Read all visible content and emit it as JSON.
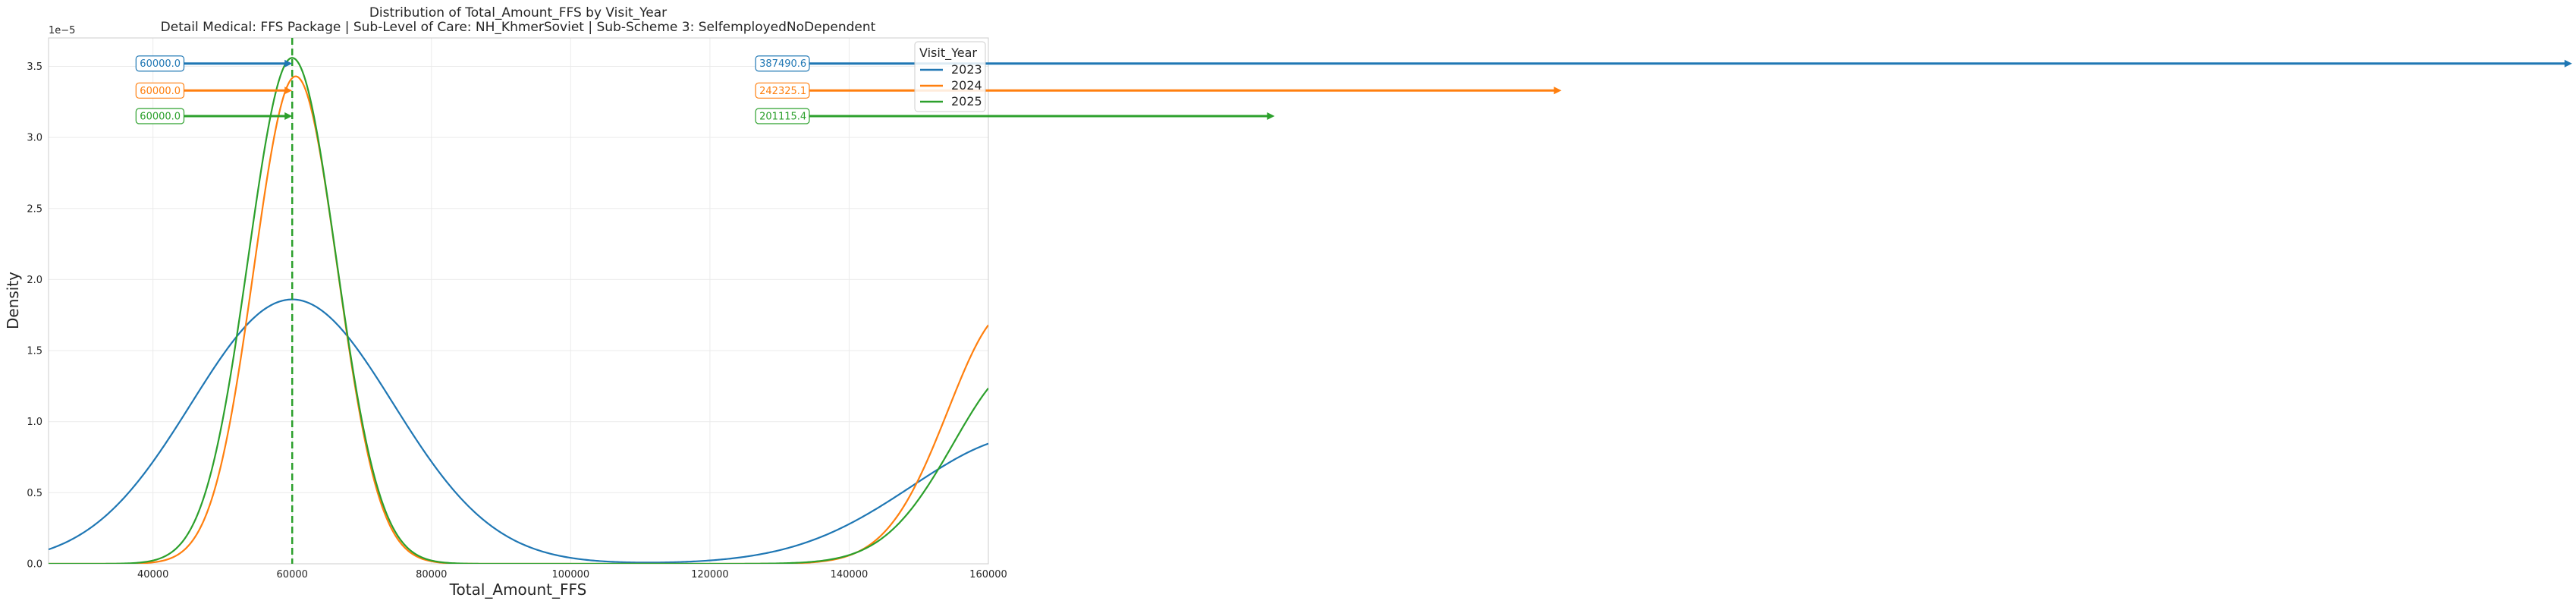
{
  "chart_data": {
    "type": "line",
    "title": "Distribution of Total_Amount_FFS by Visit_Year",
    "subtitle": "Detail Medical: FFS Package | Sub-Level of Care: NH_KhmerSoviet | Sub-Scheme 3: SelfemployedNoDependent",
    "xlabel": "Total_Amount_FFS",
    "ylabel": "Density",
    "y_scale_label": "1e−5",
    "xlim": [
      25000,
      160000
    ],
    "ylim": [
      0,
      3.7
    ],
    "x_ticks": [
      40000,
      60000,
      80000,
      100000,
      120000,
      140000,
      160000
    ],
    "x_tick_labels": [
      "40000",
      "60000",
      "80000",
      "100000",
      "120000",
      "140000",
      "160000"
    ],
    "y_ticks": [
      0,
      0.5,
      1.0,
      1.5,
      2.0,
      2.5,
      3.0,
      3.5
    ],
    "y_tick_labels": [
      "0.0",
      "0.5",
      "1.0",
      "1.5",
      "2.0",
      "2.5",
      "3.0",
      "3.5"
    ],
    "grid": true,
    "legend": {
      "title": "Visit_Year",
      "placement": "top-right"
    },
    "median_line": {
      "x": 60000,
      "color": "#2ca02c"
    },
    "series": [
      {
        "name": "2023",
        "color": "#1f77b4",
        "components": [
          {
            "mu": 60000,
            "sigma": 14500,
            "amp": 1.86
          },
          {
            "mu": 166000,
            "sigma": 17000,
            "amp": 0.9
          }
        ],
        "left_label": "60000.0",
        "left_label_y": 3.52,
        "right_label": "387490.6",
        "right_label_y": 3.52,
        "right_arrow_to_x": 387490.6
      },
      {
        "name": "2024",
        "color": "#ff7f0e",
        "components": [
          {
            "mu": 60500,
            "sigma": 6000,
            "amp": 3.43
          },
          {
            "mu": 163000,
            "sigma": 8800,
            "amp": 1.78
          }
        ],
        "left_label": "60000.0",
        "left_label_y": 3.33,
        "right_label": "242325.1",
        "right_label_y": 3.33,
        "right_arrow_to_x": 242325.1
      },
      {
        "name": "2025",
        "color": "#2ca02c",
        "components": [
          {
            "mu": 60000,
            "sigma": 6300,
            "amp": 3.56
          },
          {
            "mu": 165000,
            "sigma": 10000,
            "amp": 1.4
          }
        ],
        "left_label": "60000.0",
        "left_label_y": 3.15,
        "right_label": "201115.4",
        "right_label_y": 3.15,
        "right_arrow_to_x": 201115.4
      }
    ]
  }
}
